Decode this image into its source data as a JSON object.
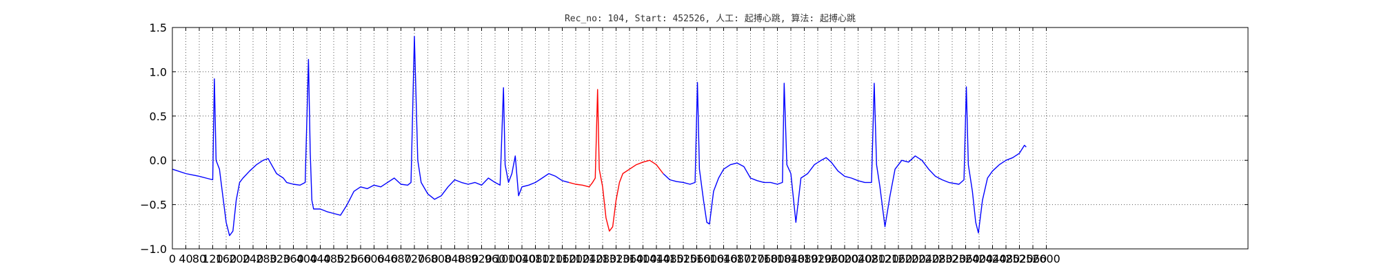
{
  "chart_data": {
    "type": "line",
    "title": "Rec_no: 104, Start: 452526, 人工: 起搏心跳, 算法: 起搏心跳",
    "xlabel": "",
    "ylabel": "",
    "ylim": [
      -1.0,
      1.5
    ],
    "xlim": [
      0,
      3200
    ],
    "grid": true,
    "x_tick_labels": [
      "0",
      "40",
      "80",
      "120",
      "160",
      "200",
      "240",
      "280",
      "320",
      "360",
      "400",
      "440",
      "480",
      "520",
      "560",
      "600",
      "640",
      "680",
      "720",
      "760",
      "800",
      "840",
      "880",
      "920",
      "960",
      "1000",
      "1040",
      "1080",
      "1120",
      "1160",
      "1200",
      "1240",
      "1280",
      "1320",
      "1360",
      "1400",
      "1440",
      "1480",
      "1520",
      "1560",
      "1600",
      "1640",
      "1680",
      "1720",
      "1760",
      "1800",
      "1840",
      "1880",
      "1920",
      "1960",
      "2000",
      "2040",
      "2080",
      "2120",
      "2160",
      "2200",
      "2240",
      "2280",
      "2320",
      "2360",
      "2400",
      "2440",
      "2480",
      "2520",
      "2560",
      "2600"
    ],
    "y_ticks": [
      -1.0,
      -0.5,
      0.0,
      0.5,
      1.0,
      1.5
    ],
    "y_tick_labels": [
      "−1.0",
      "−0.5",
      "0.0",
      "0.5",
      "1.0",
      "1.5"
    ],
    "series": [
      {
        "color": "#0000ff",
        "points": [
          [
            0,
            -0.1
          ],
          [
            40,
            -0.15
          ],
          [
            80,
            -0.18
          ],
          [
            100,
            -0.2
          ],
          [
            120,
            -0.22
          ],
          [
            125,
            0.92
          ],
          [
            130,
            0.0
          ],
          [
            140,
            -0.1
          ],
          [
            150,
            -0.4
          ],
          [
            160,
            -0.7
          ],
          [
            170,
            -0.85
          ],
          [
            180,
            -0.8
          ],
          [
            190,
            -0.45
          ],
          [
            200,
            -0.25
          ],
          [
            210,
            -0.2
          ],
          [
            230,
            -0.12
          ],
          [
            250,
            -0.05
          ],
          [
            270,
            0.0
          ],
          [
            285,
            0.02
          ],
          [
            295,
            -0.05
          ],
          [
            310,
            -0.15
          ],
          [
            330,
            -0.2
          ],
          [
            340,
            -0.25
          ],
          [
            360,
            -0.27
          ],
          [
            380,
            -0.28
          ],
          [
            395,
            -0.25
          ],
          [
            405,
            1.14
          ],
          [
            410,
            0.1
          ],
          [
            415,
            -0.45
          ],
          [
            420,
            -0.55
          ],
          [
            440,
            -0.55
          ],
          [
            460,
            -0.58
          ],
          [
            480,
            -0.6
          ],
          [
            500,
            -0.62
          ],
          [
            520,
            -0.5
          ],
          [
            540,
            -0.35
          ],
          [
            560,
            -0.3
          ],
          [
            580,
            -0.32
          ],
          [
            600,
            -0.28
          ],
          [
            620,
            -0.3
          ],
          [
            640,
            -0.25
          ],
          [
            660,
            -0.2
          ],
          [
            680,
            -0.27
          ],
          [
            700,
            -0.28
          ],
          [
            710,
            -0.25
          ],
          [
            720,
            1.4
          ],
          [
            730,
            0.0
          ],
          [
            740,
            -0.25
          ],
          [
            760,
            -0.38
          ],
          [
            780,
            -0.44
          ],
          [
            800,
            -0.4
          ],
          [
            820,
            -0.3
          ],
          [
            840,
            -0.22
          ],
          [
            860,
            -0.25
          ],
          [
            880,
            -0.27
          ],
          [
            900,
            -0.25
          ],
          [
            920,
            -0.28
          ],
          [
            940,
            -0.2
          ],
          [
            960,
            -0.25
          ],
          [
            975,
            -0.28
          ],
          [
            985,
            0.82
          ],
          [
            990,
            -0.05
          ],
          [
            1000,
            -0.25
          ],
          [
            1010,
            -0.15
          ],
          [
            1020,
            0.05
          ],
          [
            1030,
            -0.4
          ],
          [
            1040,
            -0.3
          ],
          [
            1060,
            -0.28
          ],
          [
            1080,
            -0.25
          ],
          [
            1100,
            -0.2
          ],
          [
            1120,
            -0.15
          ],
          [
            1140,
            -0.18
          ],
          [
            1160,
            -0.23
          ],
          [
            1180,
            -0.25
          ]
        ]
      },
      {
        "color": "#ff0000",
        "points": [
          [
            1180,
            -0.25
          ],
          [
            1200,
            -0.27
          ],
          [
            1220,
            -0.28
          ],
          [
            1240,
            -0.3
          ],
          [
            1250,
            -0.25
          ],
          [
            1258,
            -0.2
          ],
          [
            1265,
            0.8
          ],
          [
            1270,
            -0.1
          ],
          [
            1280,
            -0.3
          ],
          [
            1290,
            -0.65
          ],
          [
            1300,
            -0.8
          ],
          [
            1310,
            -0.75
          ],
          [
            1320,
            -0.45
          ],
          [
            1330,
            -0.25
          ],
          [
            1340,
            -0.15
          ],
          [
            1360,
            -0.1
          ],
          [
            1380,
            -0.05
          ],
          [
            1400,
            -0.02
          ],
          [
            1420,
            0.0
          ],
          [
            1440,
            -0.05
          ],
          [
            1460,
            -0.15
          ]
        ]
      },
      {
        "color": "#0000ff",
        "points": [
          [
            1460,
            -0.15
          ],
          [
            1480,
            -0.22
          ],
          [
            1500,
            -0.24
          ],
          [
            1520,
            -0.25
          ],
          [
            1540,
            -0.27
          ],
          [
            1555,
            -0.25
          ],
          [
            1562,
            0.88
          ],
          [
            1568,
            -0.1
          ],
          [
            1580,
            -0.45
          ],
          [
            1590,
            -0.7
          ],
          [
            1598,
            -0.72
          ],
          [
            1610,
            -0.35
          ],
          [
            1625,
            -0.2
          ],
          [
            1640,
            -0.1
          ],
          [
            1660,
            -0.05
          ],
          [
            1680,
            -0.03
          ],
          [
            1700,
            -0.07
          ],
          [
            1720,
            -0.2
          ],
          [
            1740,
            -0.23
          ],
          [
            1760,
            -0.25
          ],
          [
            1780,
            -0.25
          ],
          [
            1800,
            -0.27
          ],
          [
            1815,
            -0.25
          ],
          [
            1820,
            0.87
          ],
          [
            1828,
            -0.05
          ],
          [
            1840,
            -0.15
          ],
          [
            1855,
            -0.7
          ],
          [
            1870,
            -0.2
          ],
          [
            1890,
            -0.15
          ],
          [
            1910,
            -0.05
          ],
          [
            1930,
            0.0
          ],
          [
            1945,
            0.03
          ],
          [
            1960,
            -0.02
          ],
          [
            1980,
            -0.12
          ],
          [
            2000,
            -0.18
          ],
          [
            2020,
            -0.2
          ],
          [
            2040,
            -0.23
          ],
          [
            2060,
            -0.25
          ],
          [
            2080,
            -0.25
          ],
          [
            2088,
            0.87
          ],
          [
            2095,
            -0.05
          ],
          [
            2105,
            -0.3
          ],
          [
            2120,
            -0.75
          ],
          [
            2135,
            -0.4
          ],
          [
            2150,
            -0.1
          ],
          [
            2170,
            0.0
          ],
          [
            2190,
            -0.02
          ],
          [
            2210,
            0.05
          ],
          [
            2230,
            0.0
          ],
          [
            2250,
            -0.1
          ],
          [
            2270,
            -0.18
          ],
          [
            2290,
            -0.22
          ],
          [
            2310,
            -0.25
          ],
          [
            2340,
            -0.27
          ],
          [
            2355,
            -0.22
          ],
          [
            2362,
            0.83
          ],
          [
            2368,
            -0.05
          ],
          [
            2380,
            -0.35
          ],
          [
            2390,
            -0.7
          ],
          [
            2398,
            -0.82
          ],
          [
            2410,
            -0.45
          ],
          [
            2425,
            -0.2
          ],
          [
            2440,
            -0.12
          ],
          [
            2460,
            -0.05
          ],
          [
            2480,
            0.0
          ],
          [
            2500,
            0.03
          ],
          [
            2520,
            0.08
          ],
          [
            2535,
            0.17
          ],
          [
            2540,
            0.15
          ]
        ]
      }
    ]
  }
}
